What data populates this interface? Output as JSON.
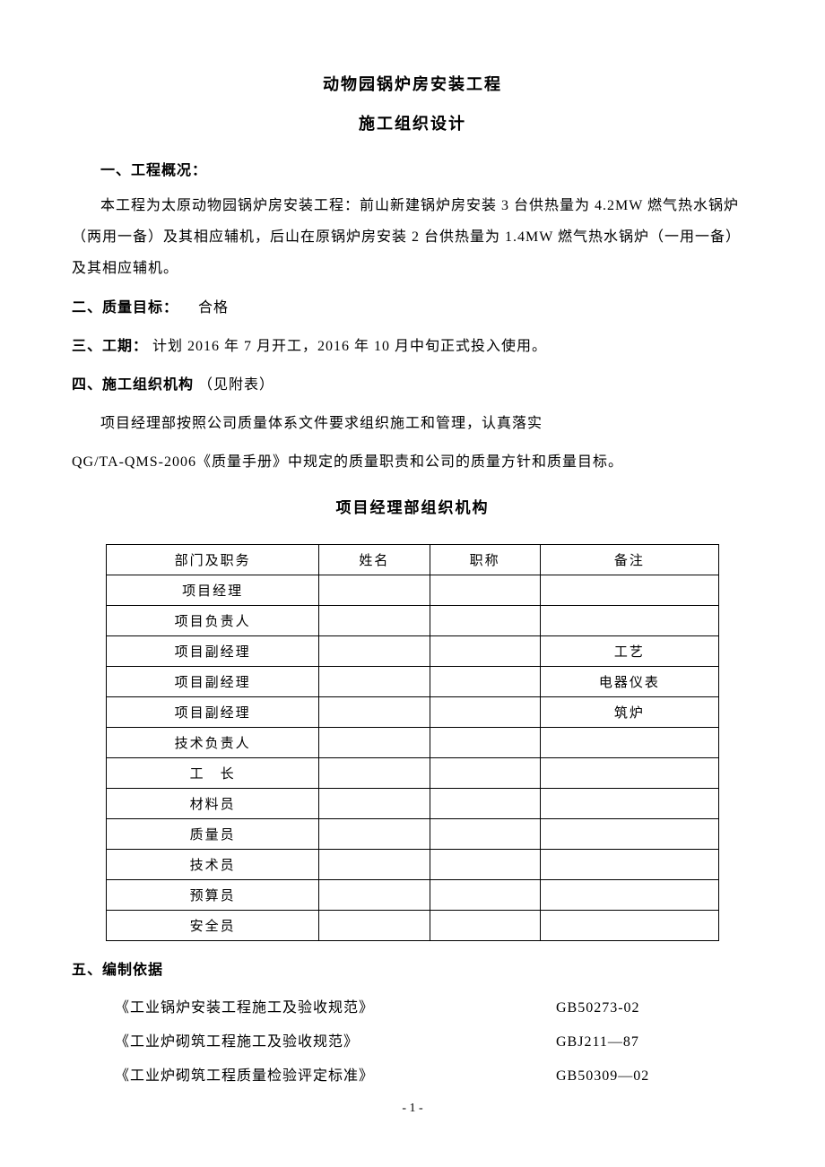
{
  "title": "动物园锅炉房安装工程",
  "subtitle": "施工组织设计",
  "section1": {
    "heading": "一、工程概况：",
    "body": "本工程为太原动物园锅炉房安装工程：前山新建锅炉房安装 3 台供热量为 4.2MW 燃气热水锅炉（两用一备）及其相应辅机，后山在原锅炉房安装 2 台供热量为 1.4MW 燃气热水锅炉（一用一备）及其相应辅机。"
  },
  "section2": {
    "label": "二、质量目标：",
    "value": "　合格"
  },
  "section3": {
    "label": "三、工期：",
    "value": "计划 2016 年 7 月开工，2016 年 10 月中旬正式投入使用。"
  },
  "section4": {
    "label": "四、施工组织机构",
    "suffix": "（见附表）",
    "body1": "项目经理部按照公司质量体系文件要求组织施工和管理，认真落实",
    "body2": "QG/TA-QMS-2006《质量手册》中规定的质量职责和公司的质量方针和质量目标。"
  },
  "table": {
    "title": "项目经理部组织机构",
    "columns": [
      "部门及职务",
      "姓名",
      "职称",
      "备注"
    ],
    "rows": [
      [
        "项目经理",
        "",
        "",
        ""
      ],
      [
        "项目负责人",
        "",
        "",
        ""
      ],
      [
        "项目副经理",
        "",
        "",
        "工艺"
      ],
      [
        "项目副经理",
        "",
        "",
        "电器仪表"
      ],
      [
        "项目副经理",
        "",
        "",
        "筑炉"
      ],
      [
        "技术负责人",
        "",
        "",
        ""
      ],
      [
        "工　长",
        "",
        "",
        ""
      ],
      [
        "材料员",
        "",
        "",
        ""
      ],
      [
        "质量员",
        "",
        "",
        ""
      ],
      [
        "技术员",
        "",
        "",
        ""
      ],
      [
        "预算员",
        "",
        "",
        ""
      ],
      [
        "安全员",
        "",
        "",
        ""
      ]
    ]
  },
  "section5": {
    "heading": "五、编制依据",
    "standards": [
      {
        "name": "《工业锅炉安装工程施工及验收规范》",
        "code": "GB50273-02"
      },
      {
        "name": "《工业炉砌筑工程施工及验收规范》",
        "code": "GBJ211—87"
      },
      {
        "name": "《工业炉砌筑工程质量检验评定标准》",
        "code": "GB50309—02"
      }
    ]
  },
  "pageNumber": "- 1 -"
}
